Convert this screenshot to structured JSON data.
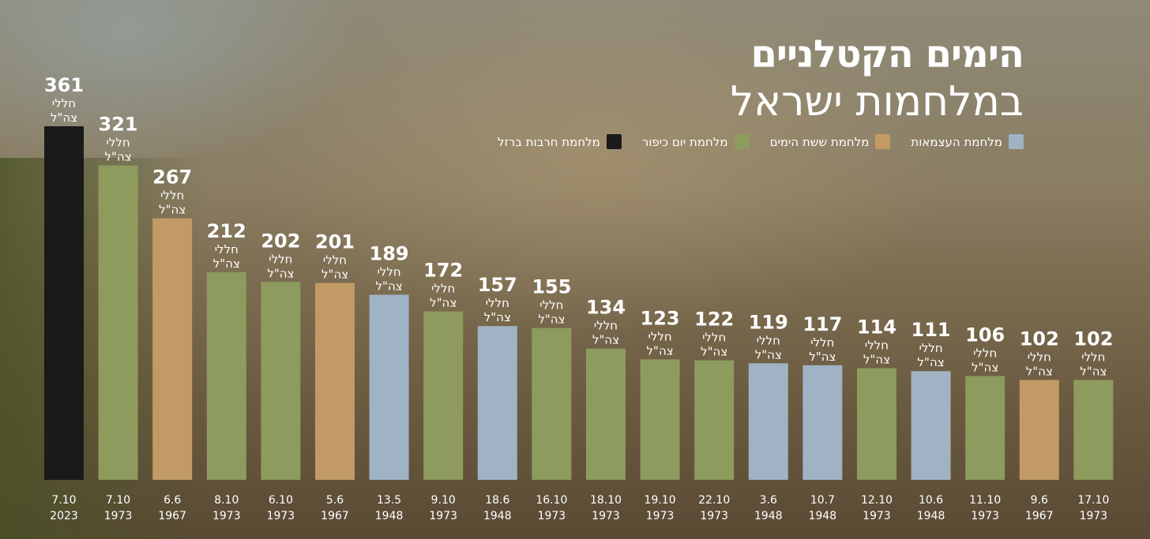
{
  "title_line1": "הימים הקטלניים",
  "title_line2": "במלחמות ישראל",
  "legend": [
    {
      "label": "מלחמת העצמאות",
      "color": "#9fb3c4"
    },
    {
      "label": "מלחמת ששת הימים",
      "color": "#c19a66"
    },
    {
      "label": "מלחמת יום כיפור",
      "color": "#8e9b5e"
    },
    {
      "label": "מלחמת חרבות ברזל",
      "color": "#1a1a1a"
    }
  ],
  "colors": {
    "1948": "#9fb3c4",
    "1967": "#c19a66",
    "1973": "#8e9b5e",
    "2023": "#1a1a1a"
  },
  "unit_line1": "חללי",
  "unit_line2": "צה\"ל",
  "chart_data": {
    "type": "bar",
    "title": "הימים הקטלניים במלחמות ישראל",
    "categories": [
      {
        "day": "7.10",
        "year": "2023"
      },
      {
        "day": "7.10",
        "year": "1973"
      },
      {
        "day": "6.6",
        "year": "1967"
      },
      {
        "day": "8.10",
        "year": "1973"
      },
      {
        "day": "6.10",
        "year": "1973"
      },
      {
        "day": "5.6",
        "year": "1967"
      },
      {
        "day": "13.5",
        "year": "1948"
      },
      {
        "day": "9.10",
        "year": "1973"
      },
      {
        "day": "18.6",
        "year": "1948"
      },
      {
        "day": "16.10",
        "year": "1973"
      },
      {
        "day": "18.10",
        "year": "1973"
      },
      {
        "day": "19.10",
        "year": "1973"
      },
      {
        "day": "22.10",
        "year": "1973"
      },
      {
        "day": "3.6",
        "year": "1948"
      },
      {
        "day": "10.7",
        "year": "1948"
      },
      {
        "day": "12.10",
        "year": "1973"
      },
      {
        "day": "10.6",
        "year": "1948"
      },
      {
        "day": "11.10",
        "year": "1973"
      },
      {
        "day": "9.6",
        "year": "1967"
      },
      {
        "day": "17.10",
        "year": "1973"
      }
    ],
    "values": [
      361,
      321,
      267,
      212,
      202,
      201,
      189,
      172,
      157,
      155,
      134,
      123,
      122,
      119,
      117,
      114,
      111,
      106,
      102,
      102
    ],
    "ylim": [
      0,
      361
    ],
    "grid": false,
    "legend_position": "top-right"
  }
}
